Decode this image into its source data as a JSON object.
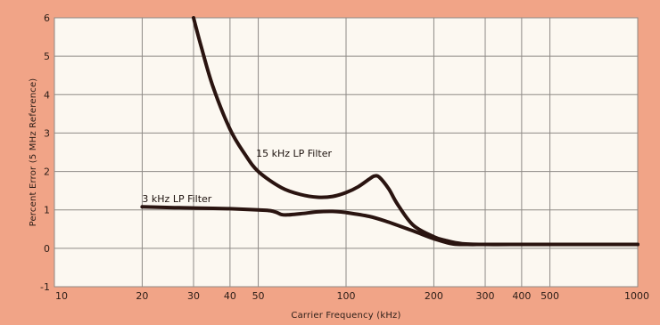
{
  "chart_data": {
    "type": "line",
    "title": "",
    "xlabel": "Carrier Frequency (kHz)",
    "ylabel": "Percent Error (5 MHz Reference)",
    "x_scale": "log",
    "xlim": [
      10,
      1000
    ],
    "ylim": [
      -1,
      6
    ],
    "grid": true,
    "x_ticks": [
      10,
      20,
      30,
      40,
      50,
      100,
      200,
      300,
      400,
      500,
      1000
    ],
    "x_tick_labels": [
      "10",
      "20",
      "30",
      "40",
      "50",
      "100",
      "200",
      "300",
      "400",
      "500",
      "1000"
    ],
    "y_ticks": [
      -1,
      0,
      1,
      2,
      3,
      4,
      5,
      6
    ],
    "y_tick_labels": [
      "-1",
      "0",
      "1",
      "2",
      "3",
      "4",
      "5",
      "6"
    ],
    "series": [
      {
        "name": "15 kHz LP Filter",
        "x": [
          30,
          32,
          35,
          40,
          45,
          50,
          60,
          70,
          80,
          90,
          100,
          110,
          120,
          125,
          130,
          140,
          150,
          170,
          200,
          220,
          250,
          300,
          400,
          500,
          700,
          1000
        ],
        "y": [
          6.0,
          5.2,
          4.2,
          3.1,
          2.45,
          2.0,
          1.58,
          1.4,
          1.33,
          1.35,
          1.45,
          1.6,
          1.8,
          1.88,
          1.85,
          1.55,
          1.15,
          0.6,
          0.3,
          0.2,
          0.12,
          0.1,
          0.1,
          0.1,
          0.1,
          0.1
        ]
      },
      {
        "name": "3 kHz LP Filter",
        "x": [
          20,
          25,
          30,
          40,
          50,
          55,
          58,
          60,
          63,
          70,
          80,
          90,
          100,
          120,
          140,
          170,
          200,
          230,
          260,
          300,
          400,
          500,
          700,
          1000
        ],
        "y": [
          1.08,
          1.06,
          1.05,
          1.03,
          1.0,
          0.98,
          0.93,
          0.88,
          0.87,
          0.9,
          0.95,
          0.96,
          0.93,
          0.83,
          0.68,
          0.45,
          0.25,
          0.12,
          0.1,
          0.1,
          0.1,
          0.1,
          0.1,
          0.1
        ]
      }
    ],
    "annotations": [
      {
        "text": "15 kHz LP Filter",
        "x": 55,
        "y": 2.5
      },
      {
        "text": "3 kHz LP Filter",
        "x": 20,
        "y": 1.3
      }
    ],
    "colors": {
      "page": "#f1a487",
      "plot_bg": "#fcf8f1",
      "grid": "#8e8a86",
      "curve": "#2a1410",
      "text": "#2b1d17"
    }
  }
}
